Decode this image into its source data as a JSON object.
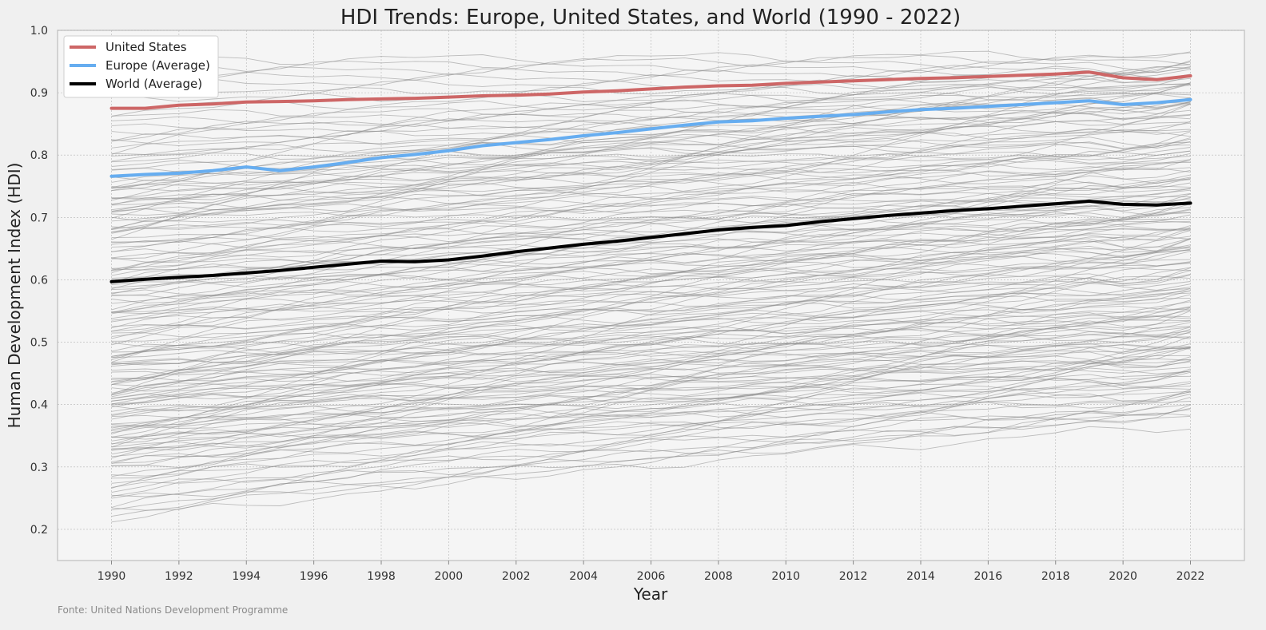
{
  "chart_data": {
    "type": "line",
    "title": "HDI Trends: Europe, United States, and World (1990 - 2022)",
    "xlabel": "Year",
    "ylabel": "Human Development Index (HDI)",
    "xlim": [
      1988.4,
      2023.6
    ],
    "ylim": [
      0.15,
      1.0
    ],
    "x_ticks": [
      1990,
      1992,
      1994,
      1996,
      1998,
      2000,
      2002,
      2004,
      2006,
      2008,
      2010,
      2012,
      2014,
      2016,
      2018,
      2020,
      2022
    ],
    "y_ticks": [
      0.2,
      0.3,
      0.4,
      0.5,
      0.6,
      0.7,
      0.8,
      0.9,
      1.0
    ],
    "grid": true,
    "legend_position": "top-left",
    "x": [
      1990,
      1991,
      1992,
      1993,
      1994,
      1995,
      1996,
      1997,
      1998,
      1999,
      2000,
      2001,
      2002,
      2003,
      2004,
      2005,
      2006,
      2007,
      2008,
      2009,
      2010,
      2011,
      2012,
      2013,
      2014,
      2015,
      2016,
      2017,
      2018,
      2019,
      2020,
      2021,
      2022
    ],
    "series": [
      {
        "name": "United States",
        "color": "#cd6666",
        "values": [
          0.875,
          0.875,
          0.88,
          0.882,
          0.885,
          0.886,
          0.887,
          0.889,
          0.89,
          0.891,
          0.893,
          0.895,
          0.896,
          0.898,
          0.901,
          0.903,
          0.906,
          0.909,
          0.911,
          0.912,
          0.915,
          0.917,
          0.919,
          0.921,
          0.923,
          0.924,
          0.926,
          0.928,
          0.93,
          0.933,
          0.924,
          0.921,
          0.927
        ]
      },
      {
        "name": "Europe (Average)",
        "color": "#66adf0",
        "values": [
          0.766,
          0.769,
          0.771,
          0.775,
          0.781,
          0.775,
          0.781,
          0.788,
          0.796,
          0.801,
          0.807,
          0.815,
          0.82,
          0.825,
          0.831,
          0.836,
          0.842,
          0.848,
          0.853,
          0.855,
          0.859,
          0.862,
          0.865,
          0.869,
          0.873,
          0.875,
          0.878,
          0.881,
          0.884,
          0.887,
          0.881,
          0.884,
          0.889
        ]
      },
      {
        "name": "World (Average)",
        "color": "#000000",
        "values": [
          0.597,
          0.601,
          0.604,
          0.607,
          0.611,
          0.615,
          0.62,
          0.625,
          0.63,
          0.629,
          0.632,
          0.638,
          0.645,
          0.651,
          0.657,
          0.662,
          0.668,
          0.674,
          0.68,
          0.684,
          0.687,
          0.693,
          0.698,
          0.703,
          0.707,
          0.711,
          0.714,
          0.718,
          0.722,
          0.726,
          0.721,
          0.72,
          0.723
        ]
      }
    ],
    "background_series": {
      "description_color": "#8c8c8c",
      "country_lines": [
        [
          0.951,
          0.962
        ],
        [
          0.941,
          0.958
        ],
        [
          0.93,
          0.952
        ],
        [
          0.92,
          0.948
        ],
        [
          0.91,
          0.942
        ],
        [
          0.9,
          0.936
        ],
        [
          0.889,
          0.93
        ],
        [
          0.88,
          0.925
        ],
        [
          0.87,
          0.918
        ],
        [
          0.86,
          0.912
        ],
        [
          0.852,
          0.905
        ],
        [
          0.845,
          0.898
        ],
        [
          0.838,
          0.892
        ],
        [
          0.83,
          0.886
        ],
        [
          0.822,
          0.88
        ],
        [
          0.815,
          0.873
        ],
        [
          0.805,
          0.866
        ],
        [
          0.797,
          0.858
        ],
        [
          0.788,
          0.85
        ],
        [
          0.78,
          0.843
        ],
        [
          0.772,
          0.836
        ],
        [
          0.764,
          0.828
        ],
        [
          0.756,
          0.821
        ],
        [
          0.748,
          0.813
        ],
        [
          0.74,
          0.806
        ],
        [
          0.733,
          0.8
        ],
        [
          0.727,
          0.795
        ],
        [
          0.72,
          0.79
        ],
        [
          0.712,
          0.784
        ],
        [
          0.705,
          0.778
        ],
        [
          0.698,
          0.771
        ],
        [
          0.69,
          0.765
        ],
        [
          0.683,
          0.759
        ],
        [
          0.676,
          0.753
        ],
        [
          0.668,
          0.747
        ],
        [
          0.661,
          0.741
        ],
        [
          0.654,
          0.735
        ],
        [
          0.646,
          0.729
        ],
        [
          0.639,
          0.724
        ],
        [
          0.632,
          0.718
        ],
        [
          0.624,
          0.712
        ],
        [
          0.617,
          0.706
        ],
        [
          0.609,
          0.7
        ],
        [
          0.602,
          0.694
        ],
        [
          0.595,
          0.688
        ],
        [
          0.587,
          0.681
        ],
        [
          0.58,
          0.675
        ],
        [
          0.572,
          0.668
        ],
        [
          0.565,
          0.661
        ],
        [
          0.557,
          0.654
        ],
        [
          0.55,
          0.647
        ],
        [
          0.542,
          0.64
        ],
        [
          0.534,
          0.632
        ],
        [
          0.526,
          0.625
        ],
        [
          0.518,
          0.618
        ],
        [
          0.51,
          0.611
        ],
        [
          0.502,
          0.604
        ],
        [
          0.494,
          0.597
        ],
        [
          0.486,
          0.59
        ],
        [
          0.478,
          0.583
        ],
        [
          0.47,
          0.576
        ],
        [
          0.462,
          0.569
        ],
        [
          0.454,
          0.562
        ],
        [
          0.446,
          0.555
        ],
        [
          0.438,
          0.548
        ],
        [
          0.43,
          0.541
        ],
        [
          0.421,
          0.534
        ],
        [
          0.413,
          0.527
        ],
        [
          0.404,
          0.52
        ],
        [
          0.396,
          0.513
        ],
        [
          0.387,
          0.506
        ],
        [
          0.378,
          0.499
        ],
        [
          0.369,
          0.492
        ],
        [
          0.36,
          0.485
        ],
        [
          0.351,
          0.478
        ],
        [
          0.342,
          0.471
        ],
        [
          0.333,
          0.464
        ],
        [
          0.324,
          0.457
        ],
        [
          0.315,
          0.449
        ],
        [
          0.306,
          0.442
        ],
        [
          0.297,
          0.434
        ],
        [
          0.286,
          0.425
        ],
        [
          0.274,
          0.415
        ],
        [
          0.261,
          0.404
        ],
        [
          0.248,
          0.393
        ],
        [
          0.236,
          0.386
        ],
        [
          0.224,
          0.397
        ],
        [
          0.212,
          0.391
        ],
        [
          0.47,
          0.712
        ],
        [
          0.455,
          0.69
        ],
        [
          0.44,
          0.668
        ],
        [
          0.425,
          0.646
        ],
        [
          0.41,
          0.626
        ],
        [
          0.395,
          0.605
        ],
        [
          0.38,
          0.584
        ],
        [
          0.365,
          0.563
        ],
        [
          0.35,
          0.542
        ],
        [
          0.335,
          0.521
        ],
        [
          0.32,
          0.5
        ],
        [
          0.305,
          0.479
        ],
        [
          0.69,
          0.805
        ],
        [
          0.672,
          0.788
        ],
        [
          0.655,
          0.771
        ],
        [
          0.637,
          0.754
        ],
        [
          0.62,
          0.737
        ],
        [
          0.602,
          0.72
        ],
        [
          0.585,
          0.703
        ],
        [
          0.567,
          0.686
        ],
        [
          0.55,
          0.669
        ],
        [
          0.532,
          0.652
        ],
        [
          0.74,
          0.935
        ],
        [
          0.725,
          0.92
        ],
        [
          0.71,
          0.905
        ],
        [
          0.695,
          0.89
        ],
        [
          0.68,
          0.875
        ],
        [
          0.665,
          0.86
        ],
        [
          0.65,
          0.845
        ],
        [
          0.635,
          0.83
        ],
        [
          0.62,
          0.815
        ],
        [
          0.605,
          0.8
        ],
        [
          0.76,
          0.878
        ],
        [
          0.745,
          0.863
        ],
        [
          0.73,
          0.847
        ],
        [
          0.715,
          0.832
        ],
        [
          0.7,
          0.816
        ],
        [
          0.59,
          0.782
        ],
        [
          0.575,
          0.765
        ],
        [
          0.56,
          0.748
        ],
        [
          0.545,
          0.73
        ],
        [
          0.53,
          0.713
        ],
        [
          0.515,
          0.696
        ],
        [
          0.5,
          0.678
        ],
        [
          0.485,
          0.661
        ],
        [
          0.47,
          0.644
        ],
        [
          0.455,
          0.627
        ],
        [
          0.44,
          0.61
        ],
        [
          0.425,
          0.592
        ],
        [
          0.41,
          0.575
        ],
        [
          0.395,
          0.558
        ],
        [
          0.38,
          0.541
        ],
        [
          0.365,
          0.523
        ],
        [
          0.35,
          0.506
        ],
        [
          0.335,
          0.489
        ],
        [
          0.32,
          0.471
        ],
        [
          0.305,
          0.454
        ],
        [
          0.29,
          0.437
        ],
        [
          0.275,
          0.42
        ],
        [
          0.26,
          0.402
        ],
        [
          0.245,
          0.385
        ],
        [
          0.23,
          0.368
        ],
        [
          0.82,
          0.95
        ],
        [
          0.805,
          0.943
        ],
        [
          0.79,
          0.937
        ],
        [
          0.775,
          0.929
        ],
        [
          0.76,
          0.922
        ],
        [
          0.745,
          0.914
        ],
        [
          0.73,
          0.906
        ],
        [
          0.715,
          0.898
        ],
        [
          0.7,
          0.89
        ],
        [
          0.685,
          0.882
        ],
        [
          0.6,
          0.76
        ],
        [
          0.58,
          0.742
        ],
        [
          0.56,
          0.724
        ],
        [
          0.54,
          0.706
        ],
        [
          0.52,
          0.688
        ],
        [
          0.5,
          0.67
        ],
        [
          0.48,
          0.652
        ],
        [
          0.46,
          0.634
        ],
        [
          0.44,
          0.616
        ],
        [
          0.42,
          0.598
        ],
        [
          0.4,
          0.58
        ],
        [
          0.38,
          0.562
        ],
        [
          0.36,
          0.544
        ],
        [
          0.34,
          0.526
        ],
        [
          0.32,
          0.508
        ],
        [
          0.3,
          0.49
        ],
        [
          0.28,
          0.472
        ],
        [
          0.26,
          0.454
        ],
        [
          0.24,
          0.436
        ],
        [
          0.48,
          0.545
        ],
        [
          0.465,
          0.53
        ],
        [
          0.45,
          0.515
        ],
        [
          0.435,
          0.5
        ],
        [
          0.42,
          0.485
        ],
        [
          0.405,
          0.47
        ],
        [
          0.39,
          0.455
        ],
        [
          0.375,
          0.44
        ],
        [
          0.36,
          0.425
        ],
        [
          0.345,
          0.41
        ],
        [
          0.33,
          0.395
        ]
      ]
    }
  },
  "source_note": "Fonte: United Nations Development Programme"
}
